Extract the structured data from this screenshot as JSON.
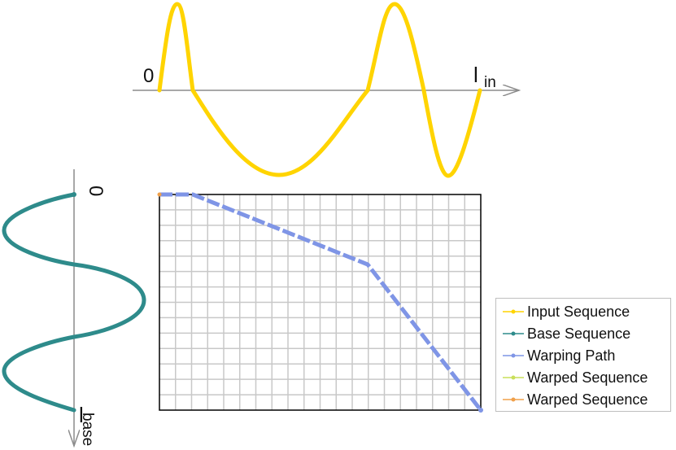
{
  "input_axis": {
    "origin_label": "0",
    "end_label_main": "l",
    "end_label_sub": "in"
  },
  "base_axis": {
    "origin_label": "0",
    "end_label_main": "l",
    "end_label_sub": "base"
  },
  "colors": {
    "input_sequence": "#ffd400",
    "base_sequence": "#2e8b8b",
    "warping_path": "#7f95e6",
    "warped_sequence_1": "#c9df5a",
    "warped_sequence_2": "#f0a04a",
    "grid": "#c8c8c8",
    "axis": "#8c8c8c"
  },
  "legend": [
    {
      "label": "Input Sequence",
      "color": "#ffd400"
    },
    {
      "label": "Base Sequence",
      "color": "#2e8b8b"
    },
    {
      "label": "Warping Path",
      "color": "#7f95e6"
    },
    {
      "label": "Warped Sequence",
      "color": "#c9df5a"
    },
    {
      "label": "Warped Sequence",
      "color": "#f0a04a"
    }
  ],
  "grid": {
    "columns": 20,
    "rows": 14
  }
}
